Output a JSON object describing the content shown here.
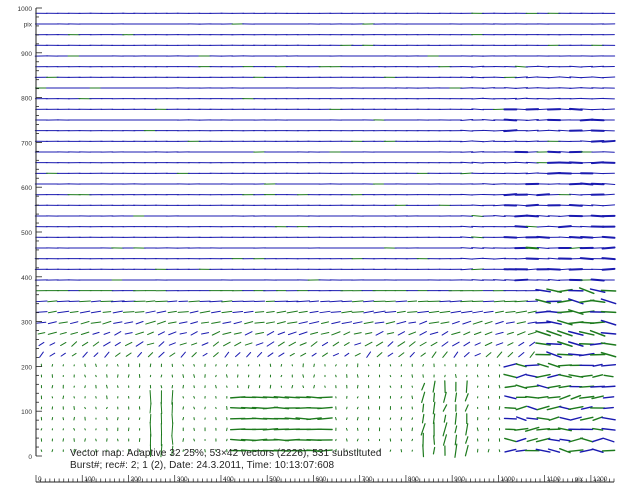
{
  "chart_data": {
    "type": "vector-field",
    "caption_lines": [
      "Vector map: Adaptive 32 25%, 53×42 vectors (2226), 531 substituted",
      "Burst#; rec#: 2; 1 (2), Date: 24.3.2011, Time: 10:13:07:608"
    ],
    "grid": {
      "columns": 53,
      "rows": 42
    },
    "x_axis": {
      "unit": "pix",
      "range": [
        0,
        1250
      ],
      "ticks": [
        0,
        100,
        200,
        300,
        400,
        500,
        600,
        700,
        800,
        900,
        1000,
        1100,
        1200
      ]
    },
    "y_axis": {
      "unit": "pix",
      "range": [
        0,
        1000
      ],
      "ticks": [
        0,
        100,
        200,
        300,
        400,
        500,
        600,
        700,
        800,
        900,
        1000
      ]
    },
    "colors": {
      "valid_vector": "#1a1ab0",
      "substituted_vector": "#1d7a1d",
      "axis": "#222222"
    }
  }
}
